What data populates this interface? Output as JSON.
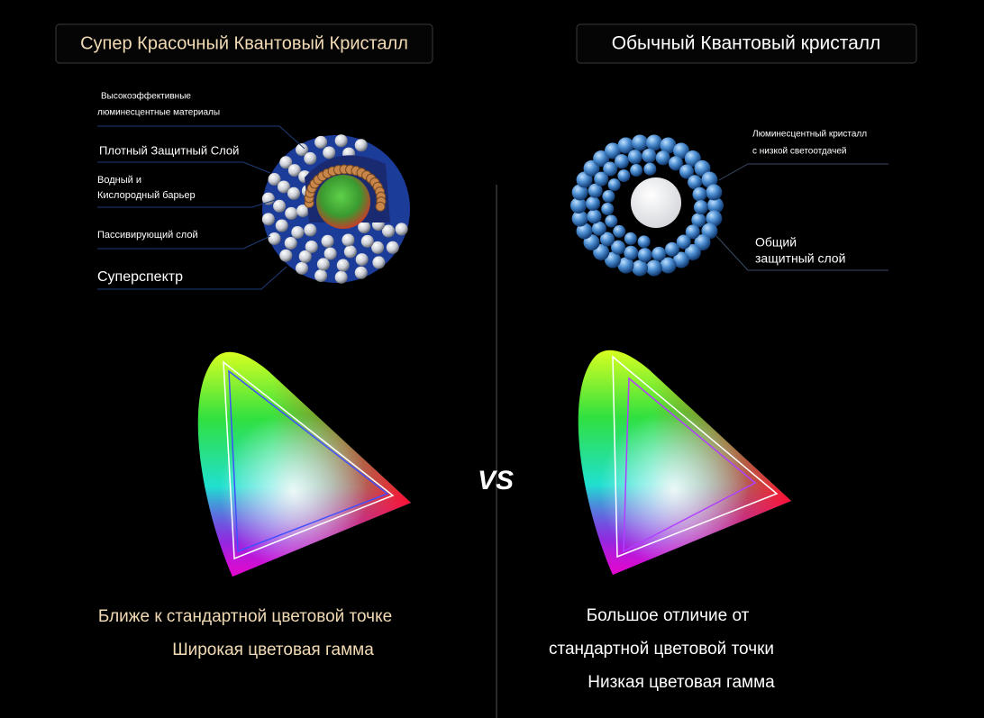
{
  "left": {
    "title": "Супер Красочный Квантовый Кристалл",
    "labels": [
      "Высокоэффективные",
      "люминесцентные материалы",
      "Плотный Защитный Слой",
      "Водный и",
      "Кислородный барьер",
      "Пассивирующий слой",
      "Суперспектр"
    ],
    "captions": [
      "Ближе к стандартной цветовой точке",
      "Широкая цветовая гамма"
    ]
  },
  "right": {
    "title": "Обычный Квантовый кристалл",
    "labels": [
      "Люминесцентный кристалл",
      "с низкой светоотдачей",
      "Общий",
      "защитный слой"
    ],
    "captions": [
      "Большое отличие от",
      "стандартной цветовой точки",
      "Низкая цветовая гамма"
    ]
  },
  "vs": "VS"
}
